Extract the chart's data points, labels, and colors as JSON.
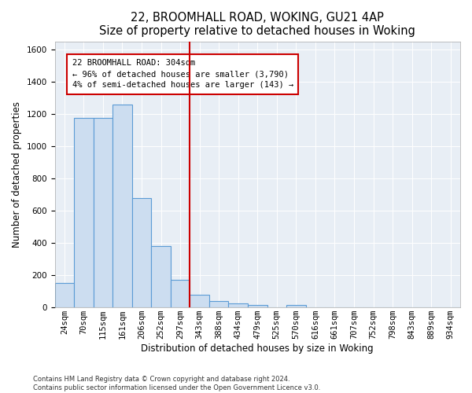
{
  "title1": "22, BROOMHALL ROAD, WOKING, GU21 4AP",
  "title2": "Size of property relative to detached houses in Woking",
  "xlabel": "Distribution of detached houses by size in Woking",
  "ylabel": "Number of detached properties",
  "categories": [
    "24sqm",
    "70sqm",
    "115sqm",
    "161sqm",
    "206sqm",
    "252sqm",
    "297sqm",
    "343sqm",
    "388sqm",
    "434sqm",
    "479sqm",
    "525sqm",
    "570sqm",
    "616sqm",
    "661sqm",
    "707sqm",
    "752sqm",
    "798sqm",
    "843sqm",
    "889sqm",
    "934sqm"
  ],
  "values": [
    150,
    1175,
    1175,
    1260,
    680,
    380,
    170,
    80,
    40,
    25,
    15,
    0,
    15,
    0,
    0,
    0,
    0,
    0,
    0,
    0,
    0
  ],
  "bar_color": "#ccddf0",
  "bar_edge_color": "#5b9bd5",
  "vline_x": 6.5,
  "annotation_line1": "22 BROOMHALL ROAD: 304sqm",
  "annotation_line2": "← 96% of detached houses are smaller (3,790)",
  "annotation_line3": "4% of semi-detached houses are larger (143) →",
  "ylim": [
    0,
    1650
  ],
  "yticks": [
    0,
    200,
    400,
    600,
    800,
    1000,
    1200,
    1400,
    1600
  ],
  "footnote1": "Contains HM Land Registry data © Crown copyright and database right 2024.",
  "footnote2": "Contains public sector information licensed under the Open Government Licence v3.0.",
  "bg_color": "#e8eef5",
  "title_fontsize": 10.5,
  "axis_label_fontsize": 8.5,
  "tick_fontsize": 7.5,
  "annot_fontsize": 7.5
}
